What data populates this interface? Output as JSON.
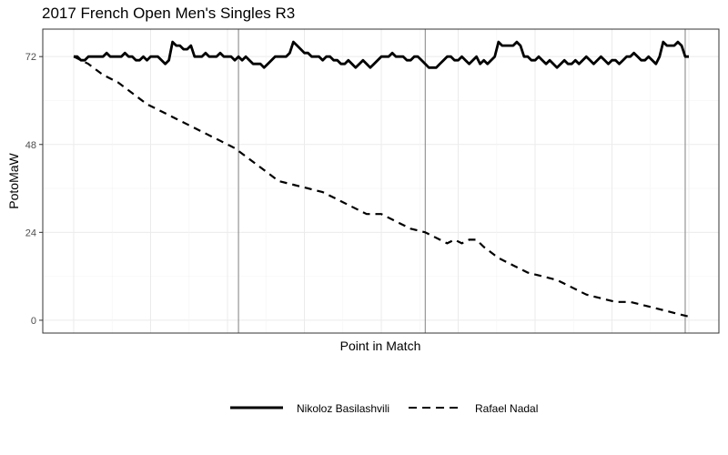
{
  "chart_data": {
    "type": "line",
    "title": "2017 French Open Men's Singles R3",
    "xlabel": "Point in Match",
    "ylabel": "PotoMaW",
    "x_tick_labels_visible": false,
    "y_ticks": [
      0,
      24,
      48,
      72
    ],
    "ylim": [
      -3.5,
      79.5
    ],
    "grid": true,
    "legend_position": "bottom",
    "set_boundaries": [
      45,
      96,
      167
    ],
    "series": [
      {
        "name": "Nikoloz Basilashvili",
        "line_style": "solid",
        "color": "#000000",
        "x": [
          0,
          1,
          2,
          3,
          4,
          5,
          6,
          7,
          8,
          9,
          10,
          11,
          12,
          13,
          14,
          15,
          16,
          17,
          18,
          19,
          20,
          21,
          22,
          23,
          24,
          25,
          26,
          27,
          28,
          29,
          30,
          31,
          32,
          33,
          34,
          35,
          36,
          37,
          38,
          39,
          40,
          41,
          42,
          43,
          44,
          45,
          46,
          47,
          48,
          49,
          50,
          51,
          52,
          53,
          54,
          55,
          56,
          57,
          58,
          59,
          60,
          61,
          62,
          63,
          64,
          65,
          66,
          67,
          68,
          69,
          70,
          71,
          72,
          73,
          74,
          75,
          76,
          77,
          78,
          79,
          80,
          81,
          82,
          83,
          84,
          85,
          86,
          87,
          88,
          89,
          90,
          91,
          92,
          93,
          94,
          95,
          96,
          97,
          98,
          99,
          100,
          101,
          102,
          103,
          104,
          105,
          106,
          107,
          108,
          109,
          110,
          111,
          112,
          113,
          114,
          115,
          116,
          117,
          118,
          119,
          120,
          121,
          122,
          123,
          124,
          125,
          126,
          127,
          128,
          129,
          130,
          131,
          132,
          133,
          134,
          135,
          136,
          137,
          138,
          139,
          140,
          141,
          142,
          143,
          144,
          145,
          146,
          147,
          148,
          149,
          150,
          151,
          152,
          153,
          154,
          155,
          156,
          157,
          158,
          159,
          160,
          161,
          162,
          163,
          164,
          165,
          166,
          167,
          168
        ],
        "values": [
          72,
          72,
          71,
          71,
          72,
          72,
          72,
          72,
          72,
          73,
          72,
          72,
          72,
          72,
          73,
          72,
          72,
          71,
          71,
          72,
          71,
          72,
          72,
          72,
          71,
          70,
          71,
          76,
          75,
          75,
          74,
          74,
          75,
          72,
          72,
          72,
          73,
          72,
          72,
          72,
          73,
          72,
          72,
          72,
          71,
          72,
          71,
          72,
          71,
          70,
          70,
          70,
          69,
          70,
          71,
          72,
          72,
          72,
          72,
          73,
          76,
          75,
          74,
          73,
          73,
          72,
          72,
          72,
          71,
          72,
          72,
          71,
          71,
          70,
          70,
          71,
          70,
          69,
          70,
          71,
          70,
          69,
          70,
          71,
          72,
          72,
          72,
          73,
          72,
          72,
          72,
          71,
          71,
          72,
          72,
          71,
          70,
          69,
          69,
          69,
          70,
          71,
          72,
          72,
          71,
          71,
          72,
          71,
          70,
          71,
          72,
          70,
          71,
          70,
          71,
          72,
          76,
          75,
          75,
          75,
          75,
          76,
          75,
          72,
          72,
          71,
          71,
          72,
          71,
          70,
          71,
          70,
          69,
          70,
          71,
          70,
          70,
          71,
          70,
          71,
          72,
          71,
          70,
          71,
          72,
          71,
          70,
          71,
          71,
          70,
          71,
          72,
          72,
          73,
          72,
          71,
          71,
          72,
          71,
          70,
          72,
          76,
          75,
          75,
          75,
          76,
          75,
          72,
          72
        ]
      },
      {
        "name": "Rafael Nadal",
        "line_style": "dashed",
        "color": "#000000",
        "x": [
          0,
          4,
          8,
          12,
          16,
          20,
          24,
          28,
          32,
          36,
          40,
          44,
          48,
          52,
          56,
          60,
          64,
          68,
          72,
          76,
          80,
          84,
          88,
          92,
          96,
          100,
          102,
          104,
          106,
          108,
          110,
          112,
          116,
          120,
          124,
          128,
          132,
          136,
          140,
          144,
          148,
          152,
          156,
          160,
          164,
          168
        ],
        "values": [
          72,
          70,
          67,
          65,
          62,
          59,
          57,
          55,
          53,
          51,
          49,
          47,
          44,
          41,
          38,
          37,
          36,
          35,
          33,
          31,
          29,
          29,
          27,
          25,
          24,
          22,
          21,
          22,
          21,
          22,
          22,
          20,
          17,
          15,
          13,
          12,
          11,
          9,
          7,
          6,
          5,
          5,
          4,
          3,
          2,
          1
        ]
      }
    ]
  }
}
